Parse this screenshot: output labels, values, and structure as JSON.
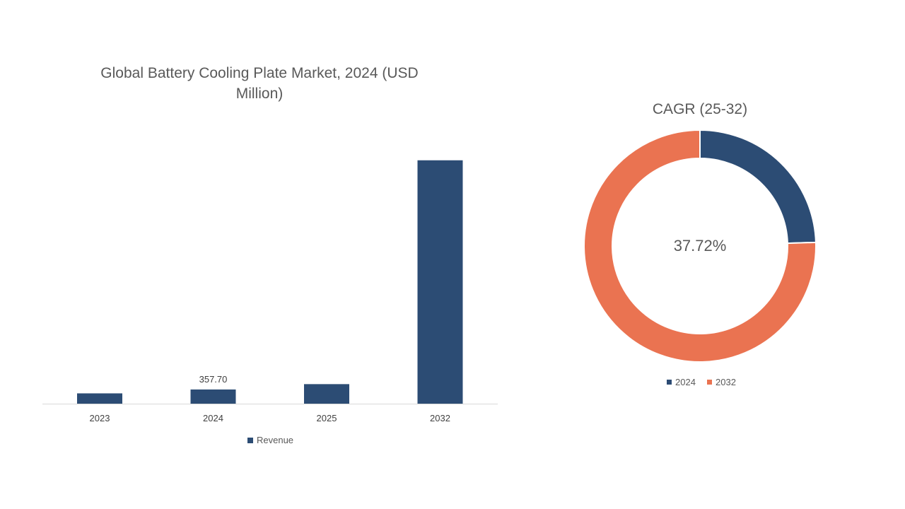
{
  "colors": {
    "bar": "#2c4c74",
    "donut_2024": "#2c4c74",
    "donut_2032": "#ea7351",
    "axis": "#d9d9d9",
    "text": "#595959"
  },
  "chart_data": [
    {
      "type": "bar",
      "title_lines": [
        "Global Battery Cooling Plate Market, 2024 (USD",
        "Million)"
      ],
      "categories": [
        "2023",
        "2024",
        "2025",
        "2032"
      ],
      "series": [
        {
          "name": "Revenue",
          "values": [
            259.7,
            357.7,
            492.6,
            6136.5
          ],
          "data_labels": [
            "",
            "357.70",
            "",
            ""
          ]
        }
      ],
      "ylim": [
        0,
        10000
      ],
      "legend_position": "bottom",
      "grid": false
    },
    {
      "type": "pie",
      "variant": "donut",
      "title": "CAGR (25-32)",
      "center_label": "37.72%",
      "slices": [
        {
          "label": "2024",
          "value": 24.5
        },
        {
          "label": "2032",
          "value": 75.5
        }
      ],
      "legend_position": "bottom"
    }
  ]
}
